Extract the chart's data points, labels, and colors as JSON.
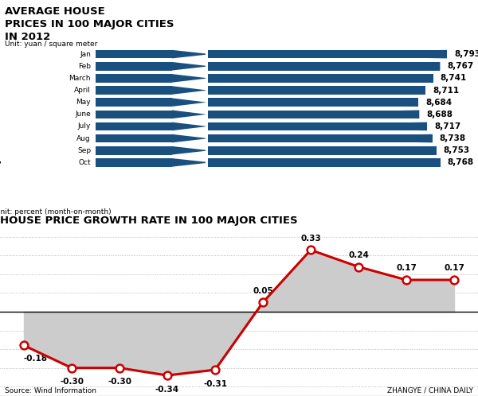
{
  "bar_title": "AVERAGE HOUSE\nPRICES IN 100 MAJOR CITIES\nIN 2012",
  "bar_unit": "Unit: yuan / square meter",
  "months": [
    "Jan",
    "Feb",
    "March",
    "April",
    "May",
    "June",
    "July",
    "Aug",
    "Sep",
    "Oct"
  ],
  "prices": [
    8793,
    8767,
    8741,
    8711,
    8684,
    8688,
    8717,
    8738,
    8753,
    8768
  ],
  "bar_color": "#1a5080",
  "line_title": "HOUSE PRICE GROWTH RATE IN 100 MAJOR CITIES",
  "line_unit": "Unit: percent (month-on-month)",
  "growth_rates": [
    -0.18,
    -0.3,
    -0.3,
    -0.34,
    -0.31,
    0.05,
    0.33,
    0.24,
    0.17,
    0.17
  ],
  "growth_labels": [
    "-0.18",
    "-0.30",
    "-0.30",
    "-0.34",
    "-0.31",
    "0.05",
    "0.33",
    "0.24",
    "0.17",
    "0.17"
  ],
  "line_color": "#cc0000",
  "shade_color": "#cccccc",
  "ylim_line": [
    -45,
    45
  ],
  "yticks_line": [
    -40,
    -30,
    -20,
    -10,
    0,
    10,
    20,
    30,
    40
  ],
  "source_text": "Source: Wind Information",
  "credit_text": "ZHANGYE / CHINA DAILY",
  "bg_color": "#ffffff",
  "grid_color": "#aaaaaa"
}
